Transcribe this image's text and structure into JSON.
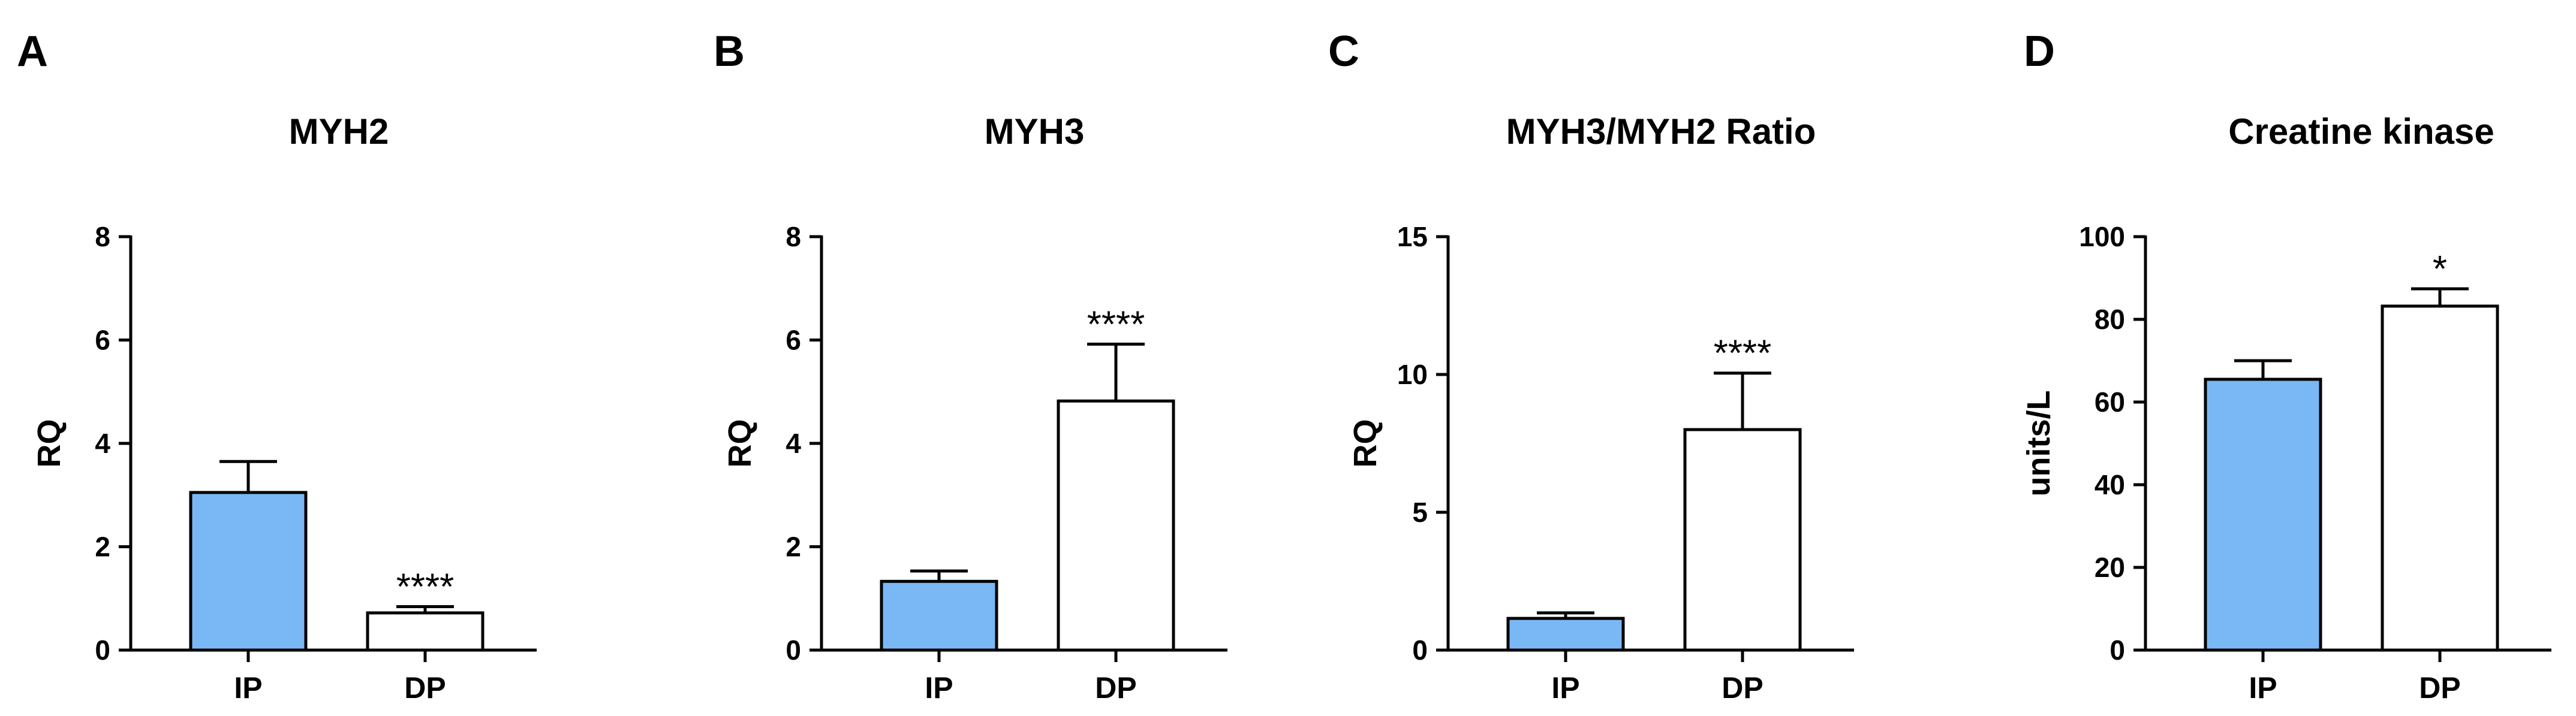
{
  "chart_data": [
    {
      "panel": "A",
      "type": "bar",
      "title": "MYH2",
      "ylabel": "RQ",
      "ylim": [
        0,
        8
      ],
      "yticks": [
        0,
        2,
        4,
        6,
        8
      ],
      "categories": [
        "IP",
        "DP"
      ],
      "values": [
        3.05,
        0.72
      ],
      "errors": [
        0.6,
        0.12
      ],
      "significance": [
        "",
        "****"
      ],
      "colors": [
        "#7ab8f5",
        "#ffffff"
      ]
    },
    {
      "panel": "B",
      "type": "bar",
      "title": "MYH3",
      "ylabel": "RQ",
      "ylim": [
        0,
        8
      ],
      "yticks": [
        0,
        2,
        4,
        6,
        8
      ],
      "categories": [
        "IP",
        "DP"
      ],
      "values": [
        1.33,
        4.82
      ],
      "errors": [
        0.2,
        1.1
      ],
      "significance": [
        "",
        "****"
      ],
      "colors": [
        "#7ab8f5",
        "#ffffff"
      ]
    },
    {
      "panel": "C",
      "type": "bar",
      "title": "MYH3/MYH2 Ratio",
      "ylabel": "RQ",
      "ylim": [
        0,
        15
      ],
      "yticks": [
        0,
        5,
        10,
        15
      ],
      "categories": [
        "IP",
        "DP"
      ],
      "values": [
        1.15,
        8.0
      ],
      "errors": [
        0.2,
        2.05
      ],
      "significance": [
        "",
        "****"
      ],
      "colors": [
        "#7ab8f5",
        "#ffffff"
      ]
    },
    {
      "panel": "D",
      "type": "bar",
      "title": "Creatine kinase",
      "ylabel": "units/L",
      "ylim": [
        0,
        100
      ],
      "yticks": [
        0,
        20,
        40,
        60,
        80,
        100
      ],
      "categories": [
        "IP",
        "DP"
      ],
      "values": [
        65.5,
        83.2
      ],
      "errors": [
        4.5,
        4.2
      ],
      "significance": [
        "",
        "*"
      ],
      "colors": [
        "#7ab8f5",
        "#ffffff"
      ]
    }
  ]
}
